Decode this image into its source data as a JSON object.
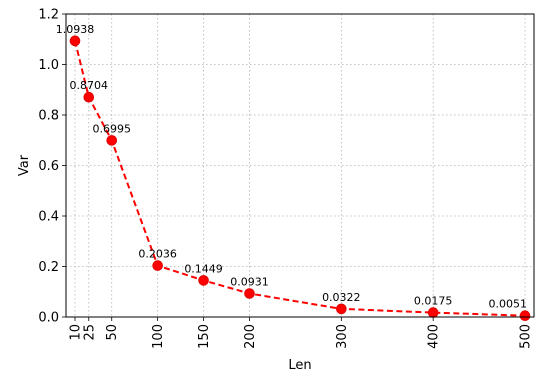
{
  "chart_data": {
    "type": "line",
    "title": "",
    "xlabel": "Len",
    "ylabel": "Var",
    "x": [
      10,
      25,
      50,
      100,
      150,
      200,
      300,
      400,
      500
    ],
    "series": [
      {
        "values": [
          1.0938,
          0.8704,
          0.6995,
          0.2036,
          0.1449,
          0.0931,
          0.0322,
          0.0175,
          0.0051
        ],
        "labels": [
          "1.0938",
          "0.8704",
          "0.6995",
          "0.2036",
          "0.1449",
          "0.0931",
          "0.0322",
          "0.0175",
          "0.0051"
        ],
        "color": "#ff0000",
        "line_style": "dashed",
        "marker": "circle"
      }
    ],
    "xticks": [
      "10",
      "25",
      "50",
      "100",
      "150",
      "200",
      "300",
      "400",
      "500"
    ],
    "yticks": [
      "0.0",
      "0.2",
      "0.4",
      "0.6",
      "0.8",
      "1.0",
      "1.2"
    ],
    "ytick_values": [
      0.0,
      0.2,
      0.4,
      0.6,
      0.8,
      1.0,
      1.2
    ],
    "ylim": [
      0,
      1.2
    ],
    "grid": true,
    "legend": "none"
  }
}
